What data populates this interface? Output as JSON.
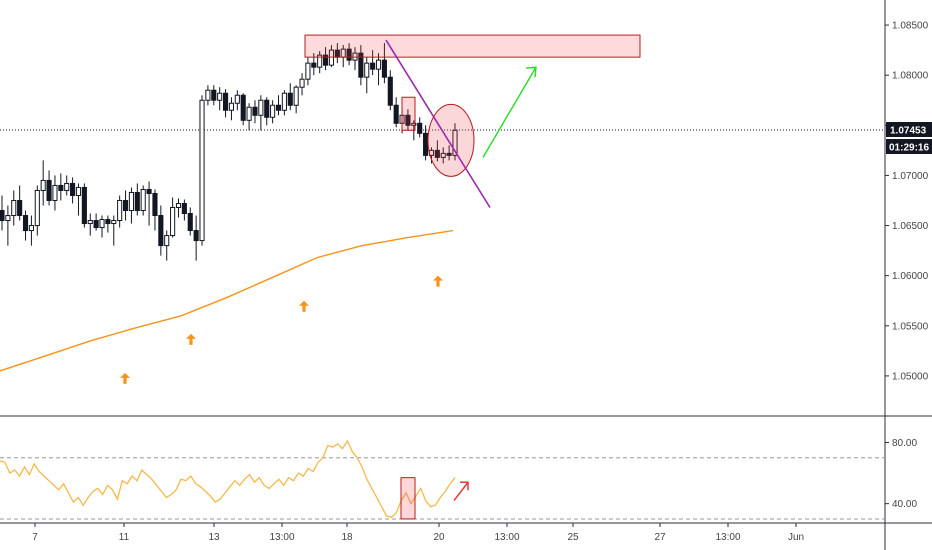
{
  "chart_data": [
    {
      "type": "candlestick",
      "title": "",
      "price_axis": {
        "ticks": [
          1.05,
          1.055,
          1.06,
          1.065,
          1.07,
          1.075,
          1.08,
          1.085
        ],
        "tick_labels": [
          "1.05000",
          "1.05500",
          "1.06000",
          "1.06500",
          "1.07000",
          "1.07500",
          "1.08000",
          "1.08500"
        ],
        "range": [
          1.0462,
          1.0875
        ]
      },
      "time_axis": {
        "labels": [
          "7",
          "11",
          "13",
          "13:00",
          "18",
          "20",
          "13:00",
          "25",
          "27",
          "13:00",
          "Jun"
        ]
      },
      "last_price": {
        "value": 1.07453,
        "label": "1.07453",
        "countdown": "01:29:16"
      },
      "candles": [
        [
          1.0665,
          1.068,
          1.0645,
          1.0655
        ],
        [
          1.0655,
          1.067,
          1.063,
          1.066
        ],
        [
          1.066,
          1.0685,
          1.065,
          1.0675
        ],
        [
          1.0675,
          1.069,
          1.0655,
          1.066
        ],
        [
          1.066,
          1.0665,
          1.0635,
          1.0645
        ],
        [
          1.0645,
          1.066,
          1.063,
          1.065
        ],
        [
          1.065,
          1.069,
          1.064,
          1.0685
        ],
        [
          1.0685,
          1.0715,
          1.067,
          1.0695
        ],
        [
          1.0695,
          1.0705,
          1.067,
          1.0675
        ],
        [
          1.0675,
          1.07,
          1.0665,
          1.069
        ],
        [
          1.069,
          1.0702,
          1.0675,
          1.0685
        ],
        [
          1.0685,
          1.07,
          1.068,
          1.0692
        ],
        [
          1.0692,
          1.0698,
          1.0672,
          1.068
        ],
        [
          1.068,
          1.0692,
          1.066,
          1.0688
        ],
        [
          1.0688,
          1.0692,
          1.0648,
          1.0652
        ],
        [
          1.0652,
          1.0662,
          1.064,
          1.0655
        ],
        [
          1.0655,
          1.0662,
          1.0645,
          1.0648
        ],
        [
          1.0648,
          1.066,
          1.0638,
          1.0656
        ],
        [
          1.0656,
          1.066,
          1.0643,
          1.0652
        ],
        [
          1.0652,
          1.066,
          1.063,
          1.0655
        ],
        [
          1.0655,
          1.068,
          1.0648,
          1.0675
        ],
        [
          1.0675,
          1.0685,
          1.0655,
          1.0665
        ],
        [
          1.0665,
          1.0688,
          1.0652,
          1.0683
        ],
        [
          1.0683,
          1.0692,
          1.066,
          1.0665
        ],
        [
          1.0665,
          1.069,
          1.066,
          1.0686
        ],
        [
          1.0686,
          1.0694,
          1.065,
          1.0682
        ],
        [
          1.0682,
          1.0686,
          1.0645,
          1.066
        ],
        [
          1.066,
          1.067,
          1.062,
          1.063
        ],
        [
          1.063,
          1.0645,
          1.0615,
          1.064
        ],
        [
          1.064,
          1.0678,
          1.0638,
          1.0668
        ],
        [
          1.0668,
          1.0677,
          1.0658,
          1.0672
        ],
        [
          1.0672,
          1.0676,
          1.0655,
          1.0662
        ],
        [
          1.0662,
          1.0668,
          1.064,
          1.0645
        ],
        [
          1.0645,
          1.066,
          1.0615,
          1.0635
        ],
        [
          1.0635,
          1.078,
          1.063,
          1.0775
        ],
        [
          1.0775,
          1.079,
          1.077,
          1.0785
        ],
        [
          1.0785,
          1.079,
          1.077,
          1.0775
        ],
        [
          1.0775,
          1.0788,
          1.0765,
          1.0782
        ],
        [
          1.0782,
          1.0786,
          1.0758,
          1.0765
        ],
        [
          1.0765,
          1.0778,
          1.0755,
          1.0772
        ],
        [
          1.0772,
          1.0785,
          1.0765,
          1.078
        ],
        [
          1.078,
          1.0782,
          1.075,
          1.0755
        ],
        [
          1.0755,
          1.0772,
          1.0745,
          1.0768
        ],
        [
          1.0768,
          1.0775,
          1.0752,
          1.076
        ],
        [
          1.076,
          1.078,
          1.0745,
          1.0775
        ],
        [
          1.0775,
          1.0778,
          1.075,
          1.0758
        ],
        [
          1.0758,
          1.0775,
          1.0752,
          1.077
        ],
        [
          1.077,
          1.078,
          1.076,
          1.0765
        ],
        [
          1.0765,
          1.0785,
          1.076,
          1.0782
        ],
        [
          1.0782,
          1.0792,
          1.0765,
          1.077
        ],
        [
          1.077,
          1.079,
          1.0762,
          1.0788
        ],
        [
          1.0788,
          1.0802,
          1.078,
          1.0796
        ],
        [
          1.0796,
          1.0818,
          1.079,
          1.0812
        ],
        [
          1.0812,
          1.0822,
          1.08,
          1.0808
        ],
        [
          1.0808,
          1.0824,
          1.0802,
          1.082
        ],
        [
          1.082,
          1.0828,
          1.0805,
          1.081
        ],
        [
          1.081,
          1.083,
          1.0808,
          1.0825
        ],
        [
          1.0825,
          1.0832,
          1.0812,
          1.0818
        ],
        [
          1.0818,
          1.083,
          1.0808,
          1.0826
        ],
        [
          1.0826,
          1.0832,
          1.081,
          1.0815
        ],
        [
          1.0815,
          1.0828,
          1.0805,
          1.0822
        ],
        [
          1.0822,
          1.083,
          1.079,
          1.0798
        ],
        [
          1.0798,
          1.0818,
          1.0782,
          1.0812
        ],
        [
          1.0812,
          1.0825,
          1.08,
          1.0806
        ],
        [
          1.0806,
          1.0822,
          1.079,
          1.0815
        ],
        [
          1.0815,
          1.0832,
          1.0792,
          1.0798
        ],
        [
          1.0798,
          1.0805,
          1.0765,
          1.077
        ],
        [
          1.077,
          1.0778,
          1.0748,
          1.0752
        ],
        [
          1.0752,
          1.0768,
          1.0742,
          1.076
        ],
        [
          1.076,
          1.0766,
          1.0745,
          1.075
        ],
        [
          1.075,
          1.0755,
          1.0735,
          1.0752
        ],
        [
          1.0752,
          1.0758,
          1.0738,
          1.0742
        ],
        [
          1.0742,
          1.075,
          1.0715,
          1.072
        ],
        [
          1.072,
          1.0728,
          1.0712,
          1.0725
        ],
        [
          1.0725,
          1.0735,
          1.0714,
          1.0718
        ],
        [
          1.0718,
          1.0728,
          1.0712,
          1.0722
        ],
        [
          1.0722,
          1.073,
          1.0715,
          1.072
        ],
        [
          1.072,
          1.0752,
          1.0715,
          1.0745
        ]
      ],
      "moving_average": [
        1.0505,
        1.052,
        1.0535,
        1.0548,
        1.056,
        1.0578,
        1.0598,
        1.0618,
        1.063,
        1.0638,
        1.0645
      ],
      "signal_arrows": 5,
      "annotations": {
        "resistance_zone": [
          1.0818,
          1.084
        ],
        "small_box": [
          1.0745,
          1.0778
        ],
        "circle_center": 1.0735,
        "trendline": [
          1.0835,
          1.0668
        ],
        "projection_arrow": [
          1.0718,
          1.0808
        ]
      }
    },
    {
      "type": "line",
      "title": "",
      "y_ticks": [
        40,
        80
      ],
      "y_tick_labels": [
        "40.00",
        "80.00"
      ],
      "ylim": [
        28,
        96
      ],
      "levels": [
        30,
        70
      ],
      "values": [
        68,
        67,
        60,
        62,
        58,
        64,
        59,
        66,
        61,
        58,
        55,
        52,
        49,
        53,
        47,
        41,
        44,
        39,
        44,
        48,
        50,
        46,
        52,
        49,
        43,
        55,
        53,
        58,
        55,
        62,
        59,
        56,
        52,
        48,
        44,
        46,
        49,
        56,
        55,
        58,
        53,
        51,
        48,
        45,
        41,
        43,
        47,
        51,
        55,
        52,
        56,
        59,
        54,
        57,
        52,
        50,
        53,
        56,
        52,
        57,
        55,
        60,
        58,
        63,
        61,
        67,
        70,
        78,
        77,
        79,
        76,
        81,
        74,
        70,
        64,
        56,
        50,
        44,
        38,
        32,
        31,
        34,
        42,
        47,
        40,
        45,
        50,
        42,
        38,
        39,
        44,
        48,
        53,
        57
      ]
    }
  ]
}
